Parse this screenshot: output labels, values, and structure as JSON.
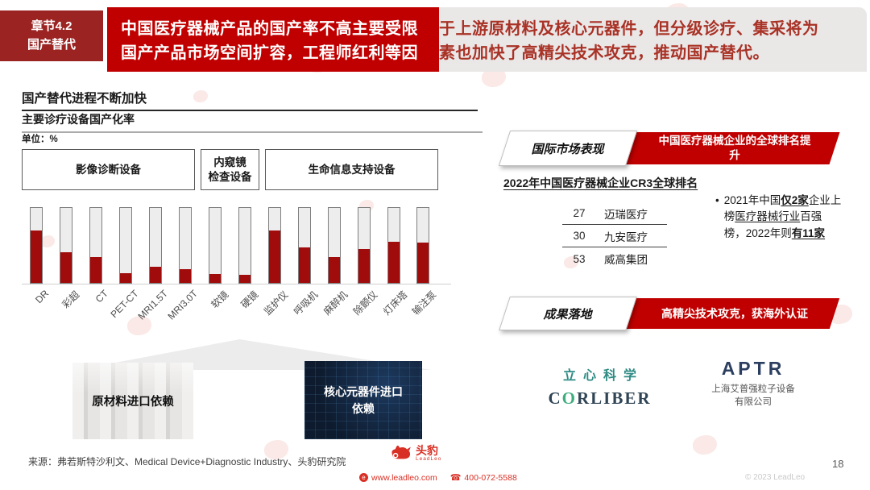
{
  "header": {
    "chapter_line1": "章节4.2",
    "chapter_line2": "国产替代",
    "banner_lines": [
      {
        "white": "中国医疗器械产品的国产率不高主要受限",
        "red": "于上游原材料及核心元器件，但分级诊疗、集采将为"
      },
      {
        "white": "国产产品市场空间扩容，工程师红利等因",
        "red": "素也加快了高精尖技术攻克，推动国产替代。"
      }
    ]
  },
  "main": {
    "title": "国产替代进程不断加快",
    "subtitle": "主要诊疗设备国产化率",
    "unit_label": "单位：%"
  },
  "chart_data": {
    "type": "bar",
    "title": "主要诊疗设备国产化率",
    "unit": "%",
    "ylim": [
      0,
      100
    ],
    "grid": false,
    "categories": [
      "DR",
      "彩超",
      "CT",
      "PET-CT",
      "MRI1.5T",
      "MRI3.0T",
      "软镜",
      "硬镜",
      "监护仪",
      "呼吸机",
      "麻醉机",
      "除颤仪",
      "灯床塔",
      "输注泵"
    ],
    "values": [
      70,
      41,
      34,
      13,
      21,
      18,
      12,
      11,
      70,
      47,
      34,
      45,
      55,
      54
    ],
    "groups": [
      {
        "label": "影像诊断设备",
        "span": 6
      },
      {
        "label": "内窥镜\n检查设备",
        "span": 2
      },
      {
        "label": "生命信息支持设备",
        "span": 6
      }
    ],
    "bar_color": "#A00B0B",
    "track_color": "#EDEDED"
  },
  "imports": {
    "left_label": "原材料进口依赖",
    "right_label": "核心元器件进口\n依赖"
  },
  "international": {
    "tab": "国际市场表现",
    "banner": "中国医疗器械企业的全球排名提升",
    "heading": "2022年中国医疗器械企业CR3全球排名",
    "ranking": [
      {
        "rank": "27",
        "company": "迈瑞医疗"
      },
      {
        "rank": "30",
        "company": "九安医疗"
      },
      {
        "rank": "53",
        "company": "威高集团"
      }
    ],
    "note_bullet": "•",
    "note_segments": [
      {
        "text": "2021年中国"
      },
      {
        "text": "仅2家",
        "bold": true,
        "underline": true
      },
      {
        "text": "企业上榜"
      },
      {
        "text": "医疗器械行业",
        "underline": true
      },
      {
        "text": "百强榜，2022年则"
      },
      {
        "text": "有11家",
        "bold": true,
        "underline": true
      }
    ]
  },
  "results": {
    "tab": "成果落地",
    "banner": "高精尖技术攻克，获海外认证",
    "logo_corliber": {
      "cn": "立心科学",
      "en_pre": "C",
      "en_o": "O",
      "en_post": "RLIBER"
    },
    "logo_aptr": {
      "en": "APTR",
      "cn": "上海艾普强粒子设备有限公司"
    }
  },
  "footer": {
    "source": "来源：弗若斯特沙利文、Medical Device+Diagnostic Industry、头豹研究院",
    "brand": "头豹",
    "brand_sub": "LeadLeo",
    "website": "www.leadleo.com",
    "phone": "400-072-5588",
    "page": "18",
    "copyright": "© 2023 LeadLeo"
  },
  "colors": {
    "banner_red": "#C00000",
    "banner_gray": "#EAE7E7",
    "banner_dark_text": "#A93226",
    "chapter_red": "#9B2423",
    "bar_red": "#A00B0B",
    "corliber_teal": "#2E8B84",
    "corliber_navy": "#2F4455",
    "corliber_green": "#3FAE7E",
    "aptr_navy": "#2C3E5F",
    "footer_red": "#D93025"
  }
}
